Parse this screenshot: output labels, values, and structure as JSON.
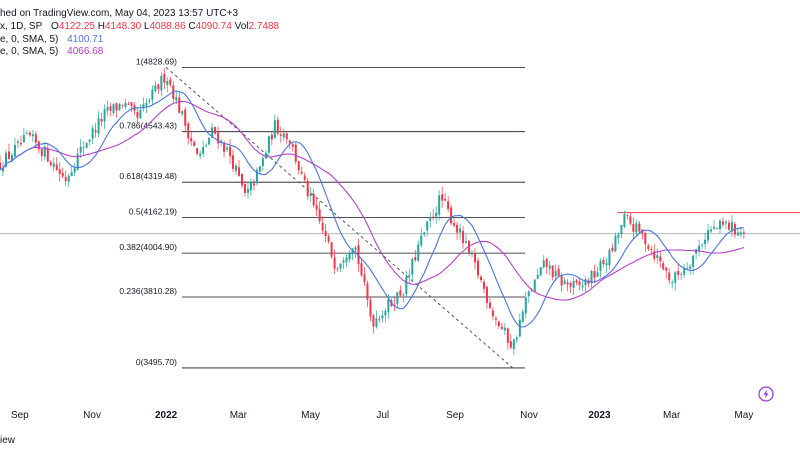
{
  "header": {
    "published": "hed on TradingView.com, May 04, 2023 13:57 UTC+3",
    "main_label": "x, 1D, SP",
    "ohlc": [
      {
        "k": "O",
        "v": "4122.25"
      },
      {
        "k": "H",
        "v": "4148.30"
      },
      {
        "k": "L",
        "v": "4088.86"
      },
      {
        "k": "C",
        "v": "4090.74"
      },
      {
        "k": "Vol",
        "v": "2.7488"
      }
    ],
    "sma_fast_label": "e, 0, SMA, 5)",
    "sma_fast_value": "4100.71",
    "sma_slow_label": "e, 0, SMA, 5)",
    "sma_slow_value": "4066.68"
  },
  "footer": {
    "text": "iew"
  },
  "colors": {
    "up": "#26a69a",
    "down": "#f23645",
    "sma_fast": "#4b74e0",
    "sma_slow": "#b640c8",
    "fib": "#131722",
    "trend": "#555555",
    "resistance": "#f23645",
    "badge": "#9b3fd8"
  },
  "chart_data": {
    "type": "candlestick",
    "x_ticks": [
      {
        "label": "Sep",
        "t": 0.55
      },
      {
        "label": "Nov",
        "t": 2.55
      },
      {
        "label": "2022",
        "t": 4.6,
        "year": true
      },
      {
        "label": "Mar",
        "t": 6.6
      },
      {
        "label": "May",
        "t": 8.6
      },
      {
        "label": "Jul",
        "t": 10.6
      },
      {
        "label": "Sep",
        "t": 12.6
      },
      {
        "label": "Nov",
        "t": 14.65
      },
      {
        "label": "2023",
        "t": 16.6,
        "year": true
      },
      {
        "label": "Mar",
        "t": 18.6
      },
      {
        "label": "May",
        "t": 20.6
      }
    ],
    "fibonacci": [
      {
        "ratio": "1",
        "price": 4828.69,
        "label": "1(4828.69)"
      },
      {
        "ratio": "0.786",
        "price": 4543.43,
        "label": "0.786(4543.43)"
      },
      {
        "ratio": "0.618",
        "price": 4319.48,
        "label": "0.618(4319.48)"
      },
      {
        "ratio": "0.5",
        "price": 4162.19,
        "label": "0.5(4162.19)"
      },
      {
        "ratio": "0.382",
        "price": 4004.9,
        "label": "0.382(4004.90)"
      },
      {
        "ratio": "0.236",
        "price": 3810.28,
        "label": "0.236(3810.28)"
      },
      {
        "ratio": "0",
        "price": 3495.7,
        "label": "0(3495.70)"
      }
    ],
    "trendline": {
      "from": {
        "t": 4.6,
        "price": 4828.69
      },
      "to": {
        "t": 14.2,
        "price": 3495.7
      }
    },
    "resistance": {
      "price": 4162.19,
      "from_t": 17.1,
      "to_t": 21.6
    },
    "last_price": 4090.74,
    "price_range": [
      3420,
      4950
    ],
    "time_range": [
      0,
      21.6
    ],
    "path": [
      {
        "t": 0,
        "p": 4400
      },
      {
        "t": 0.8,
        "p": 4520
      },
      {
        "t": 1.3,
        "p": 4440
      },
      {
        "t": 1.8,
        "p": 4330
      },
      {
        "t": 2.3,
        "p": 4480
      },
      {
        "t": 2.9,
        "p": 4620
      },
      {
        "t": 3.4,
        "p": 4670
      },
      {
        "t": 3.8,
        "p": 4600
      },
      {
        "t": 4.2,
        "p": 4700
      },
      {
        "t": 4.6,
        "p": 4800
      },
      {
        "t": 5.1,
        "p": 4590
      },
      {
        "t": 5.5,
        "p": 4420
      },
      {
        "t": 5.9,
        "p": 4550
      },
      {
        "t": 6.4,
        "p": 4430
      },
      {
        "t": 6.8,
        "p": 4250
      },
      {
        "t": 7.2,
        "p": 4380
      },
      {
        "t": 7.6,
        "p": 4570
      },
      {
        "t": 8.0,
        "p": 4520
      },
      {
        "t": 8.4,
        "p": 4320
      },
      {
        "t": 8.8,
        "p": 4160
      },
      {
        "t": 9.3,
        "p": 3950
      },
      {
        "t": 9.8,
        "p": 4060
      },
      {
        "t": 10.3,
        "p": 3700
      },
      {
        "t": 10.8,
        "p": 3780
      },
      {
        "t": 11.2,
        "p": 3850
      },
      {
        "t": 11.6,
        "p": 4040
      },
      {
        "t": 12.2,
        "p": 4250
      },
      {
        "t": 12.7,
        "p": 4100
      },
      {
        "t": 13.2,
        "p": 3930
      },
      {
        "t": 13.7,
        "p": 3720
      },
      {
        "t": 14.2,
        "p": 3590
      },
      {
        "t": 14.6,
        "p": 3810
      },
      {
        "t": 15.1,
        "p": 3960
      },
      {
        "t": 15.5,
        "p": 3880
      },
      {
        "t": 16.0,
        "p": 3850
      },
      {
        "t": 16.4,
        "p": 3900
      },
      {
        "t": 16.9,
        "p": 4000
      },
      {
        "t": 17.3,
        "p": 4160
      },
      {
        "t": 17.8,
        "p": 4080
      },
      {
        "t": 18.3,
        "p": 3960
      },
      {
        "t": 18.6,
        "p": 3880
      },
      {
        "t": 19.1,
        "p": 3970
      },
      {
        "t": 19.6,
        "p": 4100
      },
      {
        "t": 20.1,
        "p": 4130
      },
      {
        "t": 20.6,
        "p": 4090
      }
    ]
  }
}
